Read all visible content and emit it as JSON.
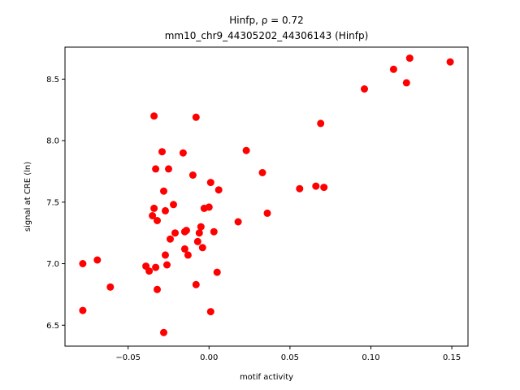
{
  "chart_data": {
    "type": "scatter",
    "title_line1": "Hinfp, ρ = 0.72",
    "title_line2": "mm10_chr9_44305202_44306143 (Hinfp)",
    "xlabel": "motif activity",
    "ylabel": "signal at CRE (ln)",
    "xlim": [
      -0.089,
      0.16
    ],
    "ylim": [
      6.33,
      8.76
    ],
    "xticks": [
      -0.05,
      0.0,
      0.05,
      0.1,
      0.15
    ],
    "xtick_labels": [
      "−0.05",
      "0.00",
      "0.05",
      "0.10",
      "0.15"
    ],
    "yticks": [
      6.5,
      7.0,
      7.5,
      8.0,
      8.5
    ],
    "ytick_labels": [
      "6.5",
      "7.0",
      "7.5",
      "8.0",
      "8.5"
    ],
    "grid": false,
    "marker_color": "#ff0000",
    "points": [
      [
        -0.078,
        7.0
      ],
      [
        -0.078,
        6.62
      ],
      [
        -0.069,
        7.03
      ],
      [
        -0.061,
        6.81
      ],
      [
        -0.039,
        6.98
      ],
      [
        -0.037,
        6.94
      ],
      [
        -0.035,
        7.39
      ],
      [
        -0.034,
        7.45
      ],
      [
        -0.034,
        8.2
      ],
      [
        -0.033,
        7.77
      ],
      [
        -0.033,
        6.97
      ],
      [
        -0.032,
        6.79
      ],
      [
        -0.032,
        7.35
      ],
      [
        -0.029,
        7.91
      ],
      [
        -0.028,
        7.59
      ],
      [
        -0.028,
        6.44
      ],
      [
        -0.027,
        7.43
      ],
      [
        -0.027,
        7.07
      ],
      [
        -0.026,
        6.99
      ],
      [
        -0.025,
        7.77
      ],
      [
        -0.024,
        7.2
      ],
      [
        -0.022,
        7.48
      ],
      [
        -0.021,
        7.25
      ],
      [
        -0.016,
        7.9
      ],
      [
        -0.015,
        7.26
      ],
      [
        -0.015,
        7.12
      ],
      [
        -0.014,
        7.27
      ],
      [
        -0.013,
        7.07
      ],
      [
        -0.01,
        7.72
      ],
      [
        -0.008,
        8.19
      ],
      [
        -0.008,
        6.83
      ],
      [
        -0.007,
        7.18
      ],
      [
        -0.006,
        7.25
      ],
      [
        -0.005,
        7.3
      ],
      [
        -0.004,
        7.13
      ],
      [
        -0.003,
        7.45
      ],
      [
        0.0,
        7.46
      ],
      [
        0.001,
        7.66
      ],
      [
        0.001,
        6.61
      ],
      [
        0.003,
        7.26
      ],
      [
        0.005,
        6.93
      ],
      [
        0.006,
        7.6
      ],
      [
        0.018,
        7.34
      ],
      [
        0.023,
        7.92
      ],
      [
        0.033,
        7.74
      ],
      [
        0.036,
        7.41
      ],
      [
        0.056,
        7.61
      ],
      [
        0.066,
        7.63
      ],
      [
        0.069,
        8.14
      ],
      [
        0.071,
        7.62
      ],
      [
        0.096,
        8.42
      ],
      [
        0.114,
        8.58
      ],
      [
        0.122,
        8.47
      ],
      [
        0.124,
        8.67
      ],
      [
        0.149,
        8.64
      ]
    ]
  }
}
